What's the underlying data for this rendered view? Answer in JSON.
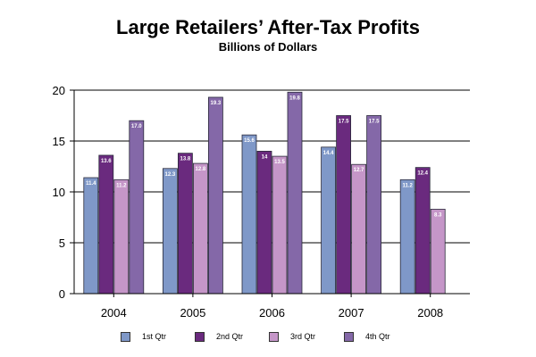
{
  "chart_data": {
    "type": "bar",
    "title": "Large Retailers’ After-Tax Profits",
    "subtitle": "Billions of Dollars",
    "xlabel": "",
    "ylabel": "",
    "categories": [
      "2004",
      "2005",
      "2006",
      "2007",
      "2008"
    ],
    "ylim": [
      0,
      20
    ],
    "yticks": [
      "0",
      "5",
      "10",
      "15",
      "20"
    ],
    "grid": true,
    "legend_position": "bottom",
    "series": [
      {
        "name": "1st Qtr",
        "color": "#7f98c8",
        "values": [
          11.4,
          12.3,
          15.6,
          14.4,
          11.2
        ],
        "labels": [
          "11.4",
          "12.3",
          "15.6",
          "14.4",
          "11.2"
        ]
      },
      {
        "name": "2nd Qtr",
        "color": "#6a2a7e",
        "values": [
          13.6,
          13.8,
          14.0,
          17.5,
          12.4
        ],
        "labels": [
          "13.6",
          "13.8",
          "14",
          "17.5",
          "12.4"
        ]
      },
      {
        "name": "3rd Qtr",
        "color": "#c596c8",
        "values": [
          11.2,
          12.8,
          13.5,
          12.7,
          8.3
        ],
        "labels": [
          "11.2",
          "12.8",
          "13.5",
          "12.7",
          "8.3"
        ]
      },
      {
        "name": "4th Qtr",
        "color": "#8468a8",
        "values": [
          17.0,
          19.3,
          19.8,
          17.5,
          null
        ],
        "labels": [
          "17.0",
          "19.3",
          "19.8",
          "17.5",
          ""
        ]
      }
    ]
  }
}
